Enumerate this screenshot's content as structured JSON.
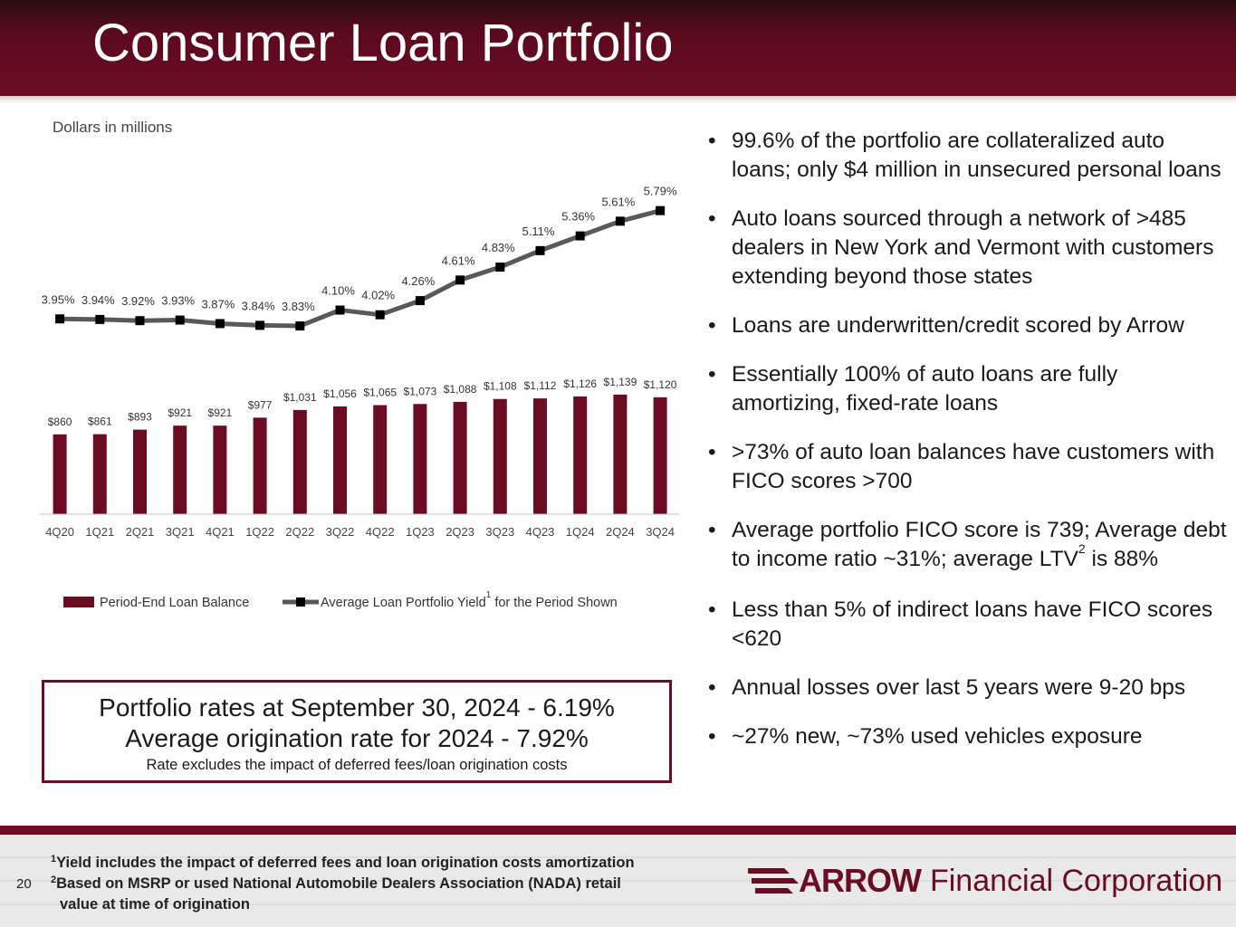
{
  "header": {
    "title": "Consumer Loan Portfolio"
  },
  "chart_units": "Dollars in millions",
  "chart_data": {
    "type": "bar",
    "categories": [
      "4Q20",
      "1Q21",
      "2Q21",
      "3Q21",
      "4Q21",
      "1Q22",
      "2Q22",
      "3Q22",
      "4Q22",
      "1Q23",
      "2Q23",
      "3Q23",
      "4Q23",
      "1Q24",
      "2Q24",
      "3Q24"
    ],
    "series": [
      {
        "name": "Period-End Loan Balance",
        "type": "bar",
        "values": [
          860,
          861,
          893,
          921,
          921,
          977,
          1031,
          1056,
          1065,
          1073,
          1088,
          1108,
          1112,
          1126,
          1139,
          1120
        ],
        "labels": [
          "$860",
          "$861",
          "$893",
          "$921",
          "$921",
          "$977",
          "$1,031",
          "$1,056",
          "$1,065",
          "$1,073",
          "$1,088",
          "$1,108",
          "$1,112",
          "$1,126",
          "$1,139",
          "$1,120"
        ],
        "color": "#6b0c22"
      },
      {
        "name": "Average Loan Portfolio Yield",
        "name_suffix": " for the Period Shown",
        "footnote": "1",
        "type": "line",
        "values": [
          3.95,
          3.94,
          3.92,
          3.93,
          3.87,
          3.84,
          3.83,
          4.1,
          4.02,
          4.26,
          4.61,
          4.83,
          5.11,
          5.36,
          5.61,
          5.79
        ],
        "labels": [
          "3.95%",
          "3.94%",
          "3.92%",
          "3.93%",
          "3.87%",
          "3.84%",
          "3.83%",
          "4.10%",
          "4.02%",
          "4.26%",
          "4.61%",
          "4.83%",
          "5.11%",
          "5.36%",
          "5.61%",
          "5.79%"
        ],
        "color": "#595959"
      }
    ],
    "legend_position": "bottom",
    "grid": false
  },
  "bullets": [
    {
      "text": "99.6% of the portfolio are collateralized auto loans; only $4 million in unsecured personal loans"
    },
    {
      "text": "Auto loans sourced through a network of >485 dealers in New York and Vermont with customers extending beyond those states"
    },
    {
      "text": "Loans are underwritten/credit scored by Arrow"
    },
    {
      "text": "Essentially 100% of auto loans are fully amortizing, fixed-rate loans"
    },
    {
      "text": ">73% of auto loan balances have customers with FICO scores >700"
    },
    {
      "text_a": "Average portfolio FICO score is 739; Average debt to income ratio ~31%; average LTV",
      "sup": "2",
      "text_b": " is 88%"
    },
    {
      "text": "Less than 5% of indirect loans have FICO scores <620"
    },
    {
      "text": "Annual losses over last 5 years were 9-20 bps"
    },
    {
      "text": "~27% new, ~73% used vehicles exposure"
    }
  ],
  "bullet_glyph": "•",
  "rates_box": {
    "line1": "Portfolio rates at September 30, 2024 - 6.19%",
    "line2": "Average origination rate for 2024 - 7.92%",
    "note": "Rate excludes the impact of deferred fees/loan origination costs"
  },
  "footer": {
    "page_number": "20",
    "footnote1_mark": "1",
    "footnote1": "Yield includes the impact of deferred fees and loan origination costs amortization",
    "footnote2_mark": "2",
    "footnote2": "Based on MSRP or used National Automobile Dealers Association (NADA) retail",
    "footnote2_cont": "value at time of origination",
    "logo_mark": "ARROW",
    "logo_text": "Financial Corporation"
  },
  "colors": {
    "brand": "#6b0c22",
    "line": "#595959"
  }
}
